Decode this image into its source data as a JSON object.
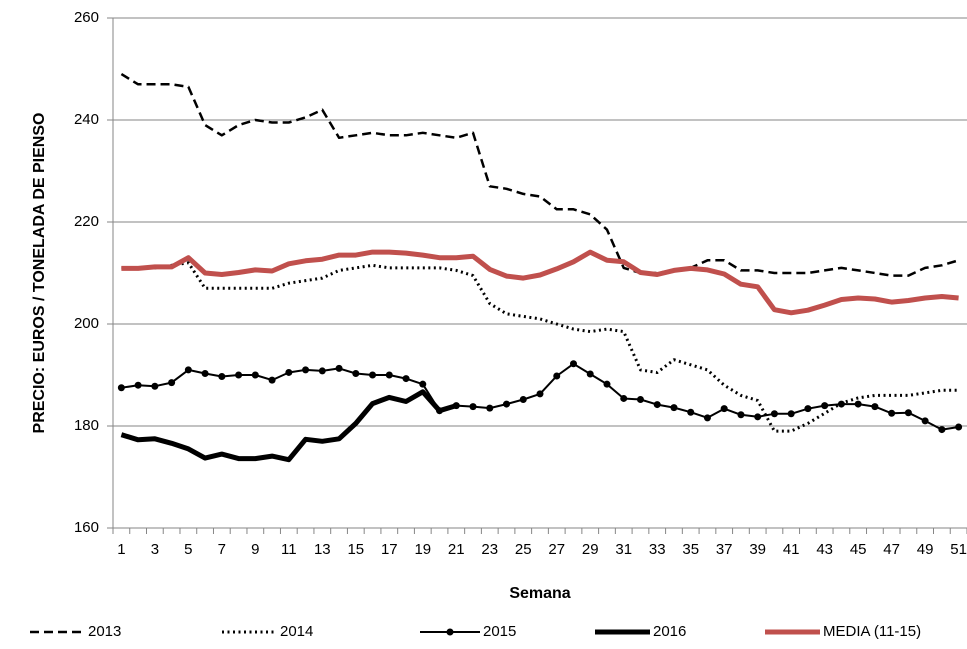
{
  "chart_data": {
    "type": "line",
    "y_label": "PRECIO: EUROS / TONELADA DE PIENSO",
    "x_label": "Semana",
    "categories": [
      1,
      null,
      3,
      null,
      5,
      null,
      7,
      null,
      9,
      null,
      11,
      null,
      13,
      null,
      15,
      null,
      17,
      null,
      19,
      null,
      21,
      null,
      23,
      null,
      25,
      null,
      27,
      null,
      29,
      null,
      31,
      null,
      33,
      null,
      35,
      null,
      37,
      null,
      39,
      null,
      41,
      null,
      43,
      null,
      45,
      null,
      47,
      null,
      49,
      null,
      51
    ],
    "ylim": [
      160,
      260
    ],
    "yticks": [
      160,
      180,
      200,
      220,
      240,
      260
    ],
    "grid": true,
    "legend": "bottom",
    "series": [
      {
        "name": "2013",
        "color": "#000000",
        "style": "dashed",
        "values": [
          249,
          247,
          247,
          247,
          246.5,
          239,
          237,
          239,
          240,
          239.5,
          239.5,
          240.5,
          242,
          236.5,
          237,
          237.5,
          237,
          237,
          237.5,
          237,
          236.5,
          237.5,
          227,
          226.5,
          225.5,
          225,
          222.5,
          222.5,
          221.5,
          218.5,
          211,
          210,
          210,
          210.5,
          211,
          212.5,
          212.5,
          210.5,
          210.5,
          210,
          210,
          210,
          210.5,
          211,
          210.5,
          210,
          209.5,
          209.5,
          211,
          211.5,
          212.5
        ]
      },
      {
        "name": "2014",
        "color": "#000000",
        "style": "dotted",
        "values": [
          211,
          211,
          211,
          211.5,
          212,
          207,
          207,
          207,
          207,
          207,
          208,
          208.5,
          209,
          210.5,
          211,
          211.5,
          211,
          211,
          211,
          211,
          210.5,
          209.5,
          204,
          202,
          201.5,
          201,
          200,
          199,
          198.5,
          199,
          198.5,
          191,
          190.5,
          193,
          192,
          191,
          188,
          186,
          185,
          179,
          179,
          180.5,
          182.5,
          184.5,
          185.5,
          186,
          186,
          186,
          186.5,
          187,
          187
        ]
      },
      {
        "name": "2015",
        "color": "#000000",
        "style": "markers",
        "values": [
          187.5,
          188,
          187.8,
          188.5,
          191,
          190.3,
          189.7,
          190,
          190,
          189,
          190.5,
          191,
          190.8,
          191.3,
          190.3,
          190,
          190,
          189.3,
          188.2,
          183,
          184,
          183.8,
          183.5,
          184.3,
          185.2,
          186.3,
          189.8,
          192.2,
          190.2,
          188.2,
          185.4,
          185.2,
          184.2,
          183.6,
          182.7,
          181.6,
          183.4,
          182.2,
          181.8,
          182.4,
          182.4,
          183.4,
          184,
          184.3,
          184.3,
          183.8,
          182.5,
          182.6,
          181,
          179.3,
          179.8
        ]
      },
      {
        "name": "2016",
        "color": "#000000",
        "style": "thick",
        "values": [
          178.3,
          177.3,
          177.5,
          176.6,
          175.5,
          173.7,
          174.5,
          173.6,
          173.6,
          174.1,
          173.4,
          177.4,
          177,
          177.5,
          180.5,
          184.4,
          185.6,
          184.8,
          186.7,
          183,
          184,
          null,
          null,
          null,
          null,
          null,
          null,
          null,
          null,
          null,
          null,
          null,
          null,
          null,
          null,
          null,
          null,
          null,
          null,
          null,
          null,
          null,
          null,
          null,
          null,
          null,
          null,
          null,
          null,
          null,
          null
        ]
      },
      {
        "name": "MEDIA (11-15)",
        "color": "#c0504d",
        "style": "thick",
        "values": [
          210.9,
          210.9,
          211.2,
          211.2,
          213,
          210,
          209.7,
          210.1,
          210.6,
          210.4,
          211.8,
          212.4,
          212.7,
          213.5,
          213.5,
          214.1,
          214.1,
          213.9,
          213.5,
          213,
          213,
          213.3,
          210.7,
          209.4,
          209,
          209.6,
          210.8,
          212.2,
          214.1,
          212.5,
          212.2,
          210.1,
          209.7,
          210.5,
          210.9,
          210.6,
          209.8,
          207.8,
          207.3,
          202.8,
          202.2,
          202.7,
          203.7,
          204.8,
          205.1,
          204.9,
          204.3,
          204.6,
          205.1,
          205.4,
          205.1
        ]
      }
    ]
  }
}
